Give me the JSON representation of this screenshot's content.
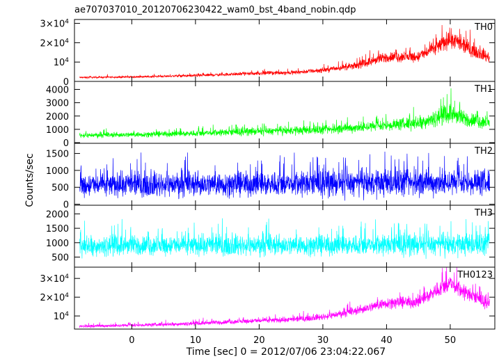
{
  "title": "ae707037010_20120706230422_wam0_bst_4band_nobin.qdp",
  "chart_data": {
    "type": "line",
    "title": "ae707037010_20120706230422_wam0_bst_4band_nobin.qdp",
    "xlabel": "Time [sec] 0 = 2012/07/06 23:04:22.067",
    "ylabel": "Counts/sec",
    "xlim": [
      -9,
      57
    ],
    "x_ticks": [
      0,
      10,
      20,
      30,
      40,
      50
    ],
    "grid": false,
    "legend": "none",
    "panels": [
      {
        "name": "TH0",
        "color": "#ff0000",
        "ylim": [
          0,
          32000
        ],
        "y_ticks": [
          {
            "v": 0,
            "label": "0"
          },
          {
            "v": 10000,
            "label": "10",
            "exp": "4"
          },
          {
            "v": 20000,
            "label": "2×10",
            "exp": "4"
          },
          {
            "v": 30000,
            "label": "3×10",
            "exp": "4"
          }
        ],
        "trend": {
          "x": [
            -8,
            0,
            10,
            20,
            25,
            30,
            35,
            40,
            45,
            48,
            50,
            52,
            56
          ],
          "y": [
            2000,
            2300,
            3000,
            4200,
            4500,
            5800,
            8000,
            12500,
            12800,
            18000,
            22000,
            18500,
            12500
          ]
        },
        "noise": 0.2
      },
      {
        "name": "TH1",
        "color": "#00ff00",
        "ylim": [
          -50,
          4600
        ],
        "y_ticks": [
          {
            "v": 0,
            "label": "0"
          },
          {
            "v": 1000,
            "label": "1000"
          },
          {
            "v": 2000,
            "label": "2000"
          },
          {
            "v": 3000,
            "label": "3000"
          },
          {
            "v": 4000,
            "label": "4000"
          }
        ],
        "trend": {
          "x": [
            -8,
            0,
            10,
            20,
            30,
            40,
            45,
            48,
            50,
            52,
            56
          ],
          "y": [
            550,
            600,
            700,
            850,
            950,
            1300,
            1500,
            1900,
            2200,
            1800,
            1500
          ]
        },
        "noise": 0.3
      },
      {
        "name": "TH2",
        "color": "#0000ff",
        "ylim": [
          -30,
          1800
        ],
        "y_ticks": [
          {
            "v": 0,
            "label": "0"
          },
          {
            "v": 500,
            "label": "500"
          },
          {
            "v": 1000,
            "label": "1000"
          },
          {
            "v": 1500,
            "label": "1500"
          }
        ],
        "trend": {
          "x": [
            -8,
            0,
            20,
            40,
            56
          ],
          "y": [
            560,
            580,
            600,
            620,
            650
          ]
        },
        "noise": 0.55
      },
      {
        "name": "TH3",
        "color": "#00ffff",
        "ylim": [
          150,
          2300
        ],
        "y_ticks": [
          {
            "v": 500,
            "label": "500"
          },
          {
            "v": 1000,
            "label": "1000"
          },
          {
            "v": 1500,
            "label": "1500"
          },
          {
            "v": 2000,
            "label": "2000"
          }
        ],
        "trend": {
          "x": [
            -8,
            0,
            20,
            40,
            56
          ],
          "y": [
            900,
            900,
            910,
            920,
            930
          ]
        },
        "noise": 0.35
      },
      {
        "name": "TH0123",
        "color": "#ff00ff",
        "ylim": [
          3000,
          36000
        ],
        "y_ticks": [
          {
            "v": 10000,
            "label": "10",
            "exp": "4"
          },
          {
            "v": 20000,
            "label": "2×10",
            "exp": "4"
          },
          {
            "v": 30000,
            "label": "3×10",
            "exp": "4"
          }
        ],
        "trend": {
          "x": [
            -8,
            0,
            10,
            20,
            25,
            30,
            35,
            40,
            45,
            48,
            50,
            52,
            56
          ],
          "y": [
            4500,
            5000,
            6000,
            7500,
            8000,
            9500,
            12500,
            17000,
            17500,
            24000,
            27500,
            23000,
            16500
          ]
        },
        "noise": 0.16
      }
    ]
  }
}
